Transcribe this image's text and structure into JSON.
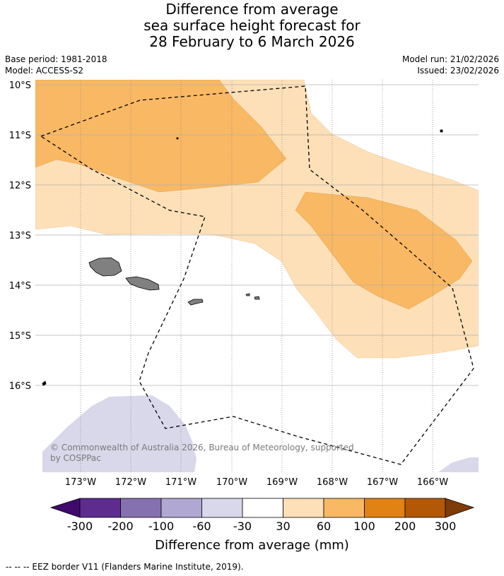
{
  "title": {
    "line1": "Difference from average",
    "line2": "sea surface height forecast for",
    "line3": "28 February to 6 March 2026"
  },
  "meta": {
    "base_period": "Base period: 1981-2018",
    "model": "Model: ACCESS-S2",
    "model_run": "Model run: 21/02/2026",
    "issued": "Issued: 23/02/2026"
  },
  "map": {
    "lat_labels": [
      "10°S",
      "11°S",
      "12°S",
      "13°S",
      "14°S",
      "15°S",
      "16°S"
    ],
    "lon_labels": [
      "173°W",
      "172°W",
      "171°W",
      "170°W",
      "169°W",
      "168°W",
      "167°W",
      "166°W"
    ],
    "copyright": "© Commonwealth of Australia 2026, Bureau of Meteorology, supported",
    "copyright_line2": "by COSPPac",
    "colors": {
      "c30_60": "#fde0b8",
      "c60_100": "#f9b863",
      "cneg60_30": "#d8d8ea",
      "land": "#808080"
    }
  },
  "colorbar": {
    "title": "Difference from average (mm)",
    "ticks": [
      "-300",
      "-200",
      "-100",
      "-60",
      "-30",
      "30",
      "60",
      "100",
      "200",
      "300"
    ],
    "colors": [
      "#3f0a6b",
      "#5e2b8f",
      "#8571b0",
      "#b0a7d3",
      "#d8d8ea",
      "#ffffff",
      "#fde0b8",
      "#f9b863",
      "#e08214",
      "#b35806",
      "#7f3b08"
    ]
  },
  "footer": "--  --  -- EEZ border V11 (Flanders Marine Institute, 2019)."
}
